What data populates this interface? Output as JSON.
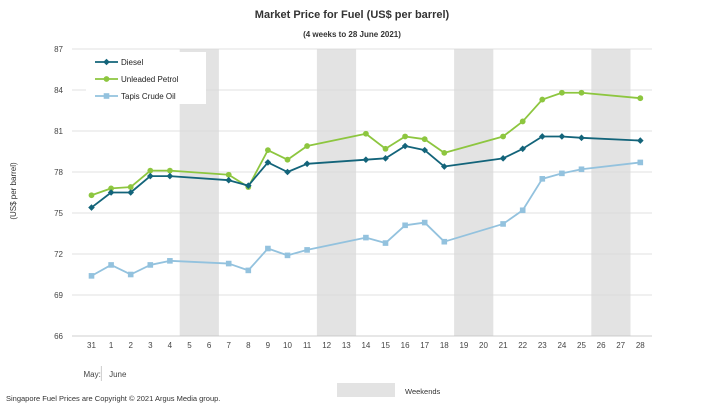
{
  "chart_data": {
    "type": "line",
    "title": "Market Price for Fuel  (US$  per barrel)",
    "subtitle": "(4 weeks to 28 June 2021)",
    "ylabel": "(US$ per barrel)",
    "ylim": [
      66,
      87
    ],
    "yticks": [
      66,
      69,
      72,
      75,
      78,
      81,
      84,
      87
    ],
    "x_ticks": [
      "31",
      "1",
      "2",
      "3",
      "4",
      "5",
      "6",
      "7",
      "8",
      "9",
      "10",
      "11",
      "12",
      "13",
      "14",
      "15",
      "16",
      "17",
      "18",
      "19",
      "20",
      "21",
      "22",
      "23",
      "24",
      "25",
      "26",
      "27",
      "28"
    ],
    "month_labels": [
      {
        "label": "May:",
        "start_index": 0
      },
      {
        "label": "June",
        "start_index": 1
      }
    ],
    "weekend_bands": [
      [
        4.5,
        6.5
      ],
      [
        11.5,
        13.5
      ],
      [
        18.5,
        20.5
      ],
      [
        25.5,
        27.5
      ]
    ],
    "weekend_label": "Weekends",
    "series": [
      {
        "name": "Diesel",
        "color": "#13647a",
        "marker": "diamond",
        "x": [
          0,
          1,
          2,
          3,
          4,
          7,
          8,
          9,
          10,
          11,
          14,
          15,
          16,
          17,
          18,
          21,
          22,
          23,
          24,
          25,
          28
        ],
        "values": [
          75.4,
          76.5,
          76.5,
          77.7,
          77.7,
          77.4,
          77.0,
          78.7,
          78.0,
          78.6,
          78.9,
          79.0,
          79.9,
          79.6,
          78.4,
          79.0,
          79.7,
          80.6,
          80.6,
          80.5,
          80.3
        ]
      },
      {
        "name": "Unleaded Petrol",
        "color": "#8dc63f",
        "marker": "circle",
        "x": [
          0,
          1,
          2,
          3,
          4,
          7,
          8,
          9,
          10,
          11,
          14,
          15,
          16,
          17,
          18,
          21,
          22,
          23,
          24,
          25,
          28
        ],
        "values": [
          76.3,
          76.8,
          76.9,
          78.1,
          78.1,
          77.8,
          76.9,
          79.6,
          78.9,
          79.9,
          80.8,
          79.7,
          80.6,
          80.4,
          79.4,
          80.6,
          81.7,
          83.3,
          83.8,
          83.8,
          83.4
        ]
      },
      {
        "name": "Tapis Crude Oil",
        "color": "#93c2de",
        "marker": "square",
        "x": [
          0,
          1,
          2,
          3,
          4,
          7,
          8,
          9,
          10,
          11,
          14,
          15,
          16,
          17,
          18,
          21,
          22,
          23,
          24,
          25,
          28
        ],
        "values": [
          70.4,
          71.2,
          70.5,
          71.2,
          71.5,
          71.3,
          70.8,
          72.4,
          71.9,
          72.3,
          73.2,
          72.8,
          74.1,
          74.3,
          72.9,
          74.2,
          75.2,
          77.5,
          77.9,
          78.2,
          78.7
        ]
      }
    ]
  },
  "footer": {
    "copyright": "Singapore  Fuel Prices are Copyright © 2021  Argus Media group."
  },
  "colors": {
    "weekend_band": "#e3e3e3",
    "grid": "#d9d9d9",
    "axis": "#bfbfbf"
  }
}
